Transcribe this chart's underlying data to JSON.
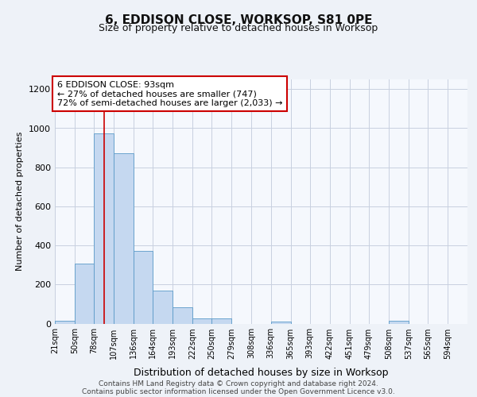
{
  "title": "6, EDDISON CLOSE, WORKSOP, S81 0PE",
  "subtitle": "Size of property relative to detached houses in Worksop",
  "xlabel": "Distribution of detached houses by size in Worksop",
  "ylabel": "Number of detached properties",
  "bin_labels": [
    "21sqm",
    "50sqm",
    "78sqm",
    "107sqm",
    "136sqm",
    "164sqm",
    "193sqm",
    "222sqm",
    "250sqm",
    "279sqm",
    "308sqm",
    "336sqm",
    "365sqm",
    "393sqm",
    "422sqm",
    "451sqm",
    "479sqm",
    "508sqm",
    "537sqm",
    "565sqm",
    "594sqm"
  ],
  "bin_edges": [
    21,
    50,
    78,
    107,
    136,
    164,
    193,
    222,
    250,
    279,
    308,
    336,
    365,
    393,
    422,
    451,
    479,
    508,
    537,
    565,
    594,
    623
  ],
  "bar_heights": [
    15,
    305,
    975,
    870,
    370,
    170,
    85,
    25,
    25,
    0,
    0,
    10,
    0,
    0,
    0,
    0,
    0,
    15,
    0,
    0,
    0
  ],
  "bar_color": "#c5d8f0",
  "bar_edge_color": "#5a9ac8",
  "vline_x": 93,
  "vline_color": "#cc0000",
  "annotation_line1": "6 EDDISON CLOSE: 93sqm",
  "annotation_line2": "← 27% of detached houses are smaller (747)",
  "annotation_line3": "72% of semi-detached houses are larger (2,033) →",
  "annotation_box_color": "#cc0000",
  "ylim": [
    0,
    1250
  ],
  "yticks": [
    0,
    200,
    400,
    600,
    800,
    1000,
    1200
  ],
  "footer_line1": "Contains HM Land Registry data © Crown copyright and database right 2024.",
  "footer_line2": "Contains public sector information licensed under the Open Government Licence v3.0.",
  "bg_color": "#eef2f8",
  "plot_bg_color": "#f5f8fd",
  "grid_color": "#c8d0e0"
}
